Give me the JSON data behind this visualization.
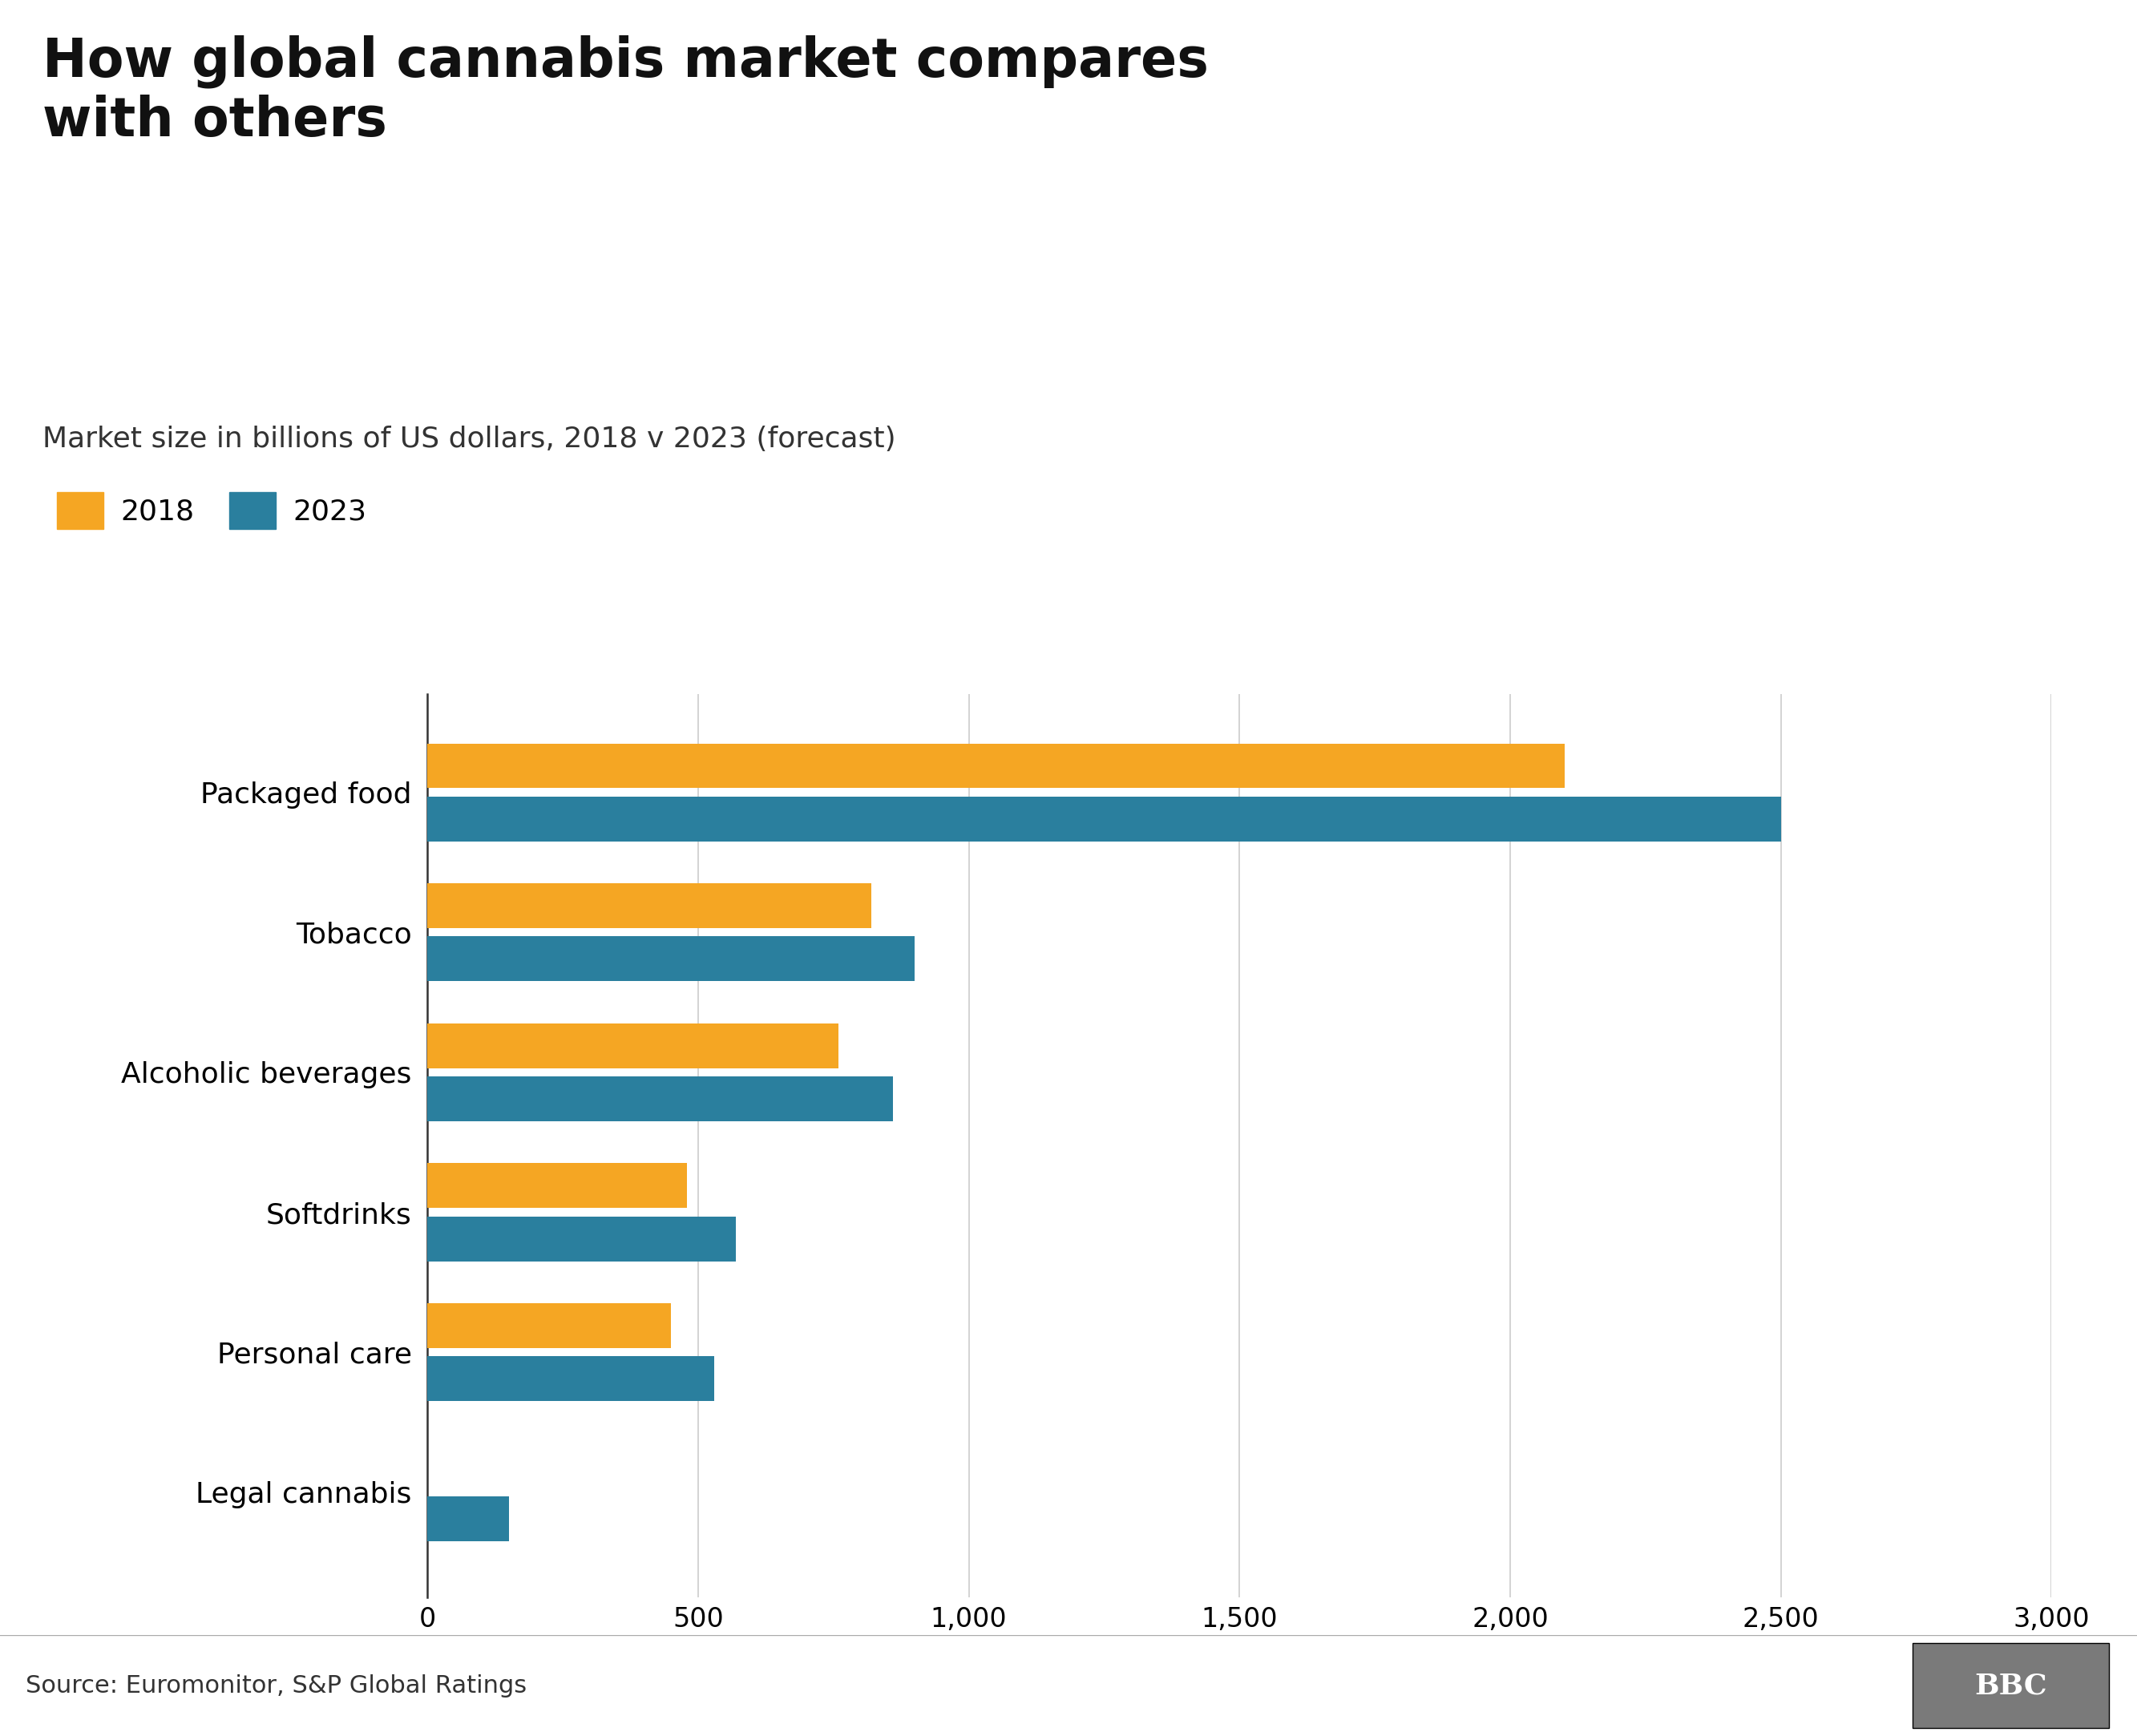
{
  "title": "How global cannabis market compares\nwith others",
  "subtitle": "Market size in billions of US dollars, 2018 v 2023 (forecast)",
  "source": "Source: Euromonitor, S&P Global Ratings",
  "categories": [
    "Packaged food",
    "Tobacco",
    "Alcoholic beverages",
    "Softdrinks",
    "Personal care",
    "Legal cannabis"
  ],
  "values_2018": [
    2100,
    820,
    760,
    480,
    450,
    0
  ],
  "values_2023": [
    2500,
    900,
    860,
    570,
    530,
    150
  ],
  "color_2018": "#F5A623",
  "color_2023": "#2A7F9E",
  "xlim": [
    0,
    3000
  ],
  "xticks": [
    0,
    500,
    1000,
    1500,
    2000,
    2500,
    3000
  ],
  "xtick_labels": [
    "0",
    "500",
    "1,000",
    "1,500",
    "2,000",
    "2,500",
    "3,000"
  ],
  "background_color": "#FFFFFF",
  "title_fontsize": 48,
  "subtitle_fontsize": 26,
  "legend_fontsize": 26,
  "tick_fontsize": 24,
  "label_fontsize": 26,
  "source_fontsize": 22,
  "bar_height": 0.32,
  "grid_color": "#CCCCCC",
  "footer_bg": "#DEDEDE",
  "bbc_bg": "#7A7A7A"
}
